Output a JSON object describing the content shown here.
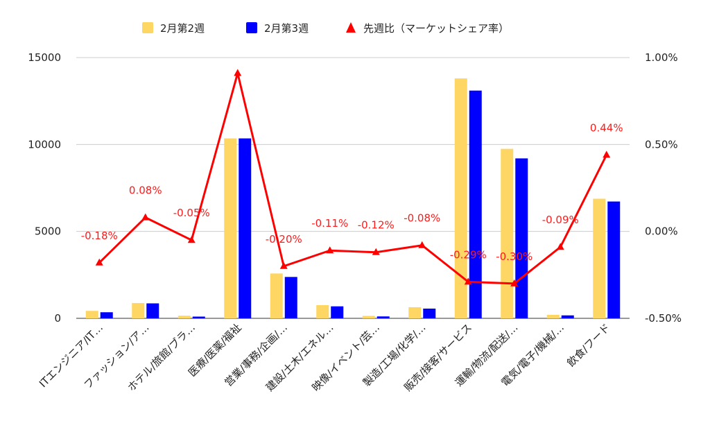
{
  "chart_data": {
    "type": "bar",
    "categories": [
      "ITエンジニア/IT…",
      "ファッション/ア…",
      "ホテル/旅館/ブラ…",
      "医療/医薬/福祉",
      "営業/事務/企画/…",
      "建設/土木/エネル…",
      "映像/イベント/芸…",
      "製造/工場/化学/…",
      "販売/接客/サービス",
      "運輸/物流/配送/…",
      "電気/電子/機械/…",
      "飲食/フード"
    ],
    "series": [
      {
        "name": "2月第2週",
        "color": "#FDD663",
        "axis": "left",
        "values": [
          430,
          880,
          150,
          10350,
          2580,
          760,
          140,
          640,
          13800,
          9750,
          200,
          6880
        ]
      },
      {
        "name": "2月第3週",
        "color": "#0000FF",
        "axis": "left",
        "values": [
          350,
          860,
          100,
          10350,
          2380,
          690,
          110,
          560,
          13100,
          9200,
          170,
          6720
        ]
      },
      {
        "name": "先週比（マーケットシェア率）",
        "type": "line",
        "color": "#FF0000",
        "axis": "right",
        "values": [
          -0.18,
          0.08,
          -0.05,
          0.91,
          -0.2,
          -0.11,
          -0.12,
          -0.08,
          -0.29,
          -0.3,
          -0.09,
          0.44
        ]
      }
    ],
    "point_labels": [
      "-0.18%",
      "0.08%",
      "-0.05%",
      "",
      "-0.20%",
      "-0.11%",
      "-0.12%",
      "-0.08%",
      "-0.29%",
      "-0.30%",
      "-0.09%",
      "0.44%"
    ],
    "y_left": {
      "ticks": [
        0,
        5000,
        10000,
        15000
      ],
      "tick_labels": [
        "0",
        "5000",
        "10000",
        "15000"
      ],
      "ylim": [
        0,
        15000
      ]
    },
    "y_right": {
      "ticks": [
        -0.5,
        0,
        0.5,
        1.0
      ],
      "tick_labels": [
        "-0.50%",
        "0.00%",
        "0.50%",
        "1.00%"
      ],
      "ylim": [
        -0.5,
        1.0
      ]
    },
    "grid": true,
    "legend_position": "top-center"
  }
}
